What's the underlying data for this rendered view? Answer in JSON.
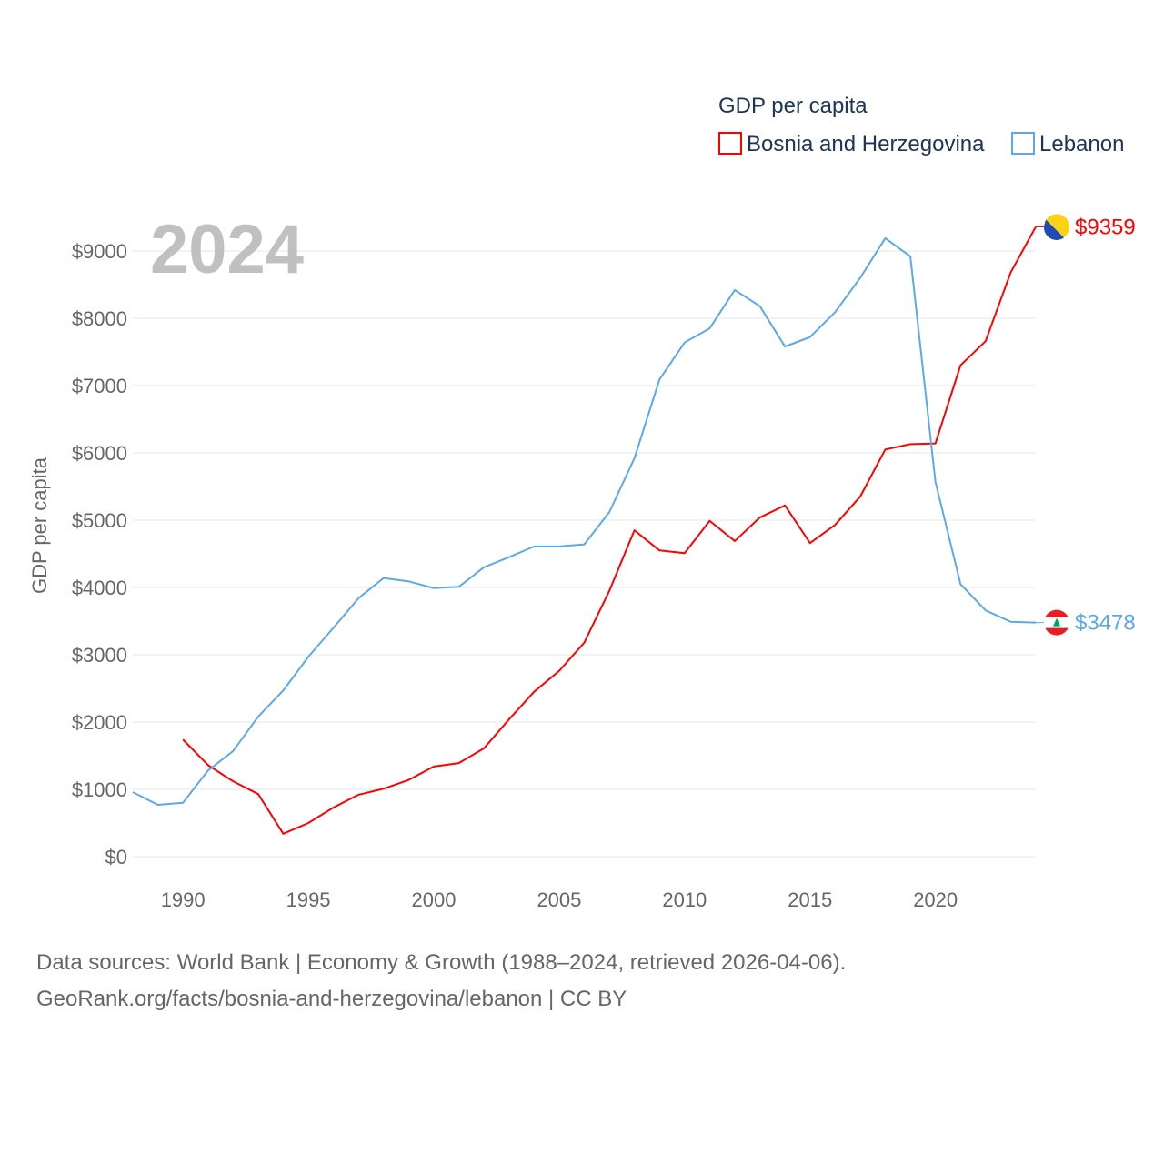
{
  "chart_data": {
    "type": "line",
    "title": "GDP per capita",
    "ylabel": "GDP per capita",
    "xlabel": "",
    "year_label": "2024",
    "xlim": [
      1988,
      2024
    ],
    "ylim": [
      0,
      9000
    ],
    "x_ticks": [
      1990,
      1995,
      2000,
      2005,
      2010,
      2015,
      2020
    ],
    "y_ticks": [
      0,
      1000,
      2000,
      3000,
      4000,
      5000,
      6000,
      7000,
      8000,
      9000
    ],
    "y_tick_labels": [
      "$0",
      "$1000",
      "$2000",
      "$3000",
      "$4000",
      "$5000",
      "$6000",
      "$7000",
      "$8000",
      "$9000"
    ],
    "legend_placement": "top-right",
    "grid": true,
    "series": [
      {
        "name": "Bosnia and Herzegovina",
        "color": "#ff0000",
        "end_label": "$9359",
        "flag_icon": "bosnia-flag-icon",
        "x": [
          1990,
          1991,
          1992,
          1993,
          1994,
          1995,
          1996,
          1997,
          1998,
          1999,
          2000,
          2001,
          2002,
          2003,
          2004,
          2005,
          2006,
          2007,
          2008,
          2009,
          2010,
          2011,
          2012,
          2013,
          2014,
          2015,
          2016,
          2017,
          2018,
          2019,
          2020,
          2021,
          2022,
          2023,
          2024
        ],
        "values": [
          1740,
          1360,
          1120,
          930,
          340,
          500,
          730,
          920,
          1010,
          1140,
          1340,
          1390,
          1610,
          2040,
          2450,
          2760,
          3180,
          3950,
          4850,
          4550,
          4510,
          4990,
          4690,
          5040,
          5220,
          4660,
          4930,
          5350,
          6050,
          6130,
          6140,
          7300,
          7660,
          8680,
          9359
        ]
      },
      {
        "name": "Lebanon",
        "color": "#5ca8ea",
        "end_label": "$3478",
        "flag_icon": "lebanon-flag-icon",
        "x": [
          1988,
          1989,
          1990,
          1991,
          1992,
          1993,
          1994,
          1995,
          1996,
          1997,
          1998,
          1999,
          2000,
          2001,
          2002,
          2003,
          2004,
          2005,
          2006,
          2007,
          2008,
          2009,
          2010,
          2011,
          2012,
          2013,
          2014,
          2015,
          2016,
          2017,
          2018,
          2019,
          2020,
          2021,
          2022,
          2023,
          2024
        ],
        "values": [
          960,
          770,
          800,
          1280,
          1570,
          2080,
          2470,
          2970,
          3400,
          3840,
          4140,
          4090,
          3990,
          4010,
          4300,
          4450,
          4610,
          4610,
          4640,
          5120,
          5920,
          7090,
          7640,
          7850,
          8420,
          8180,
          7580,
          7720,
          8090,
          8600,
          9190,
          8920,
          5570,
          4050,
          3660,
          3490,
          3478
        ]
      }
    ]
  },
  "footer": {
    "line1": "Data sources: World Bank | Economy & Growth (1988–2024, retrieved 2026-04-06).",
    "line2": "GeoRank.org/facts/bosnia-and-herzegovina/lebanon | CC BY"
  }
}
